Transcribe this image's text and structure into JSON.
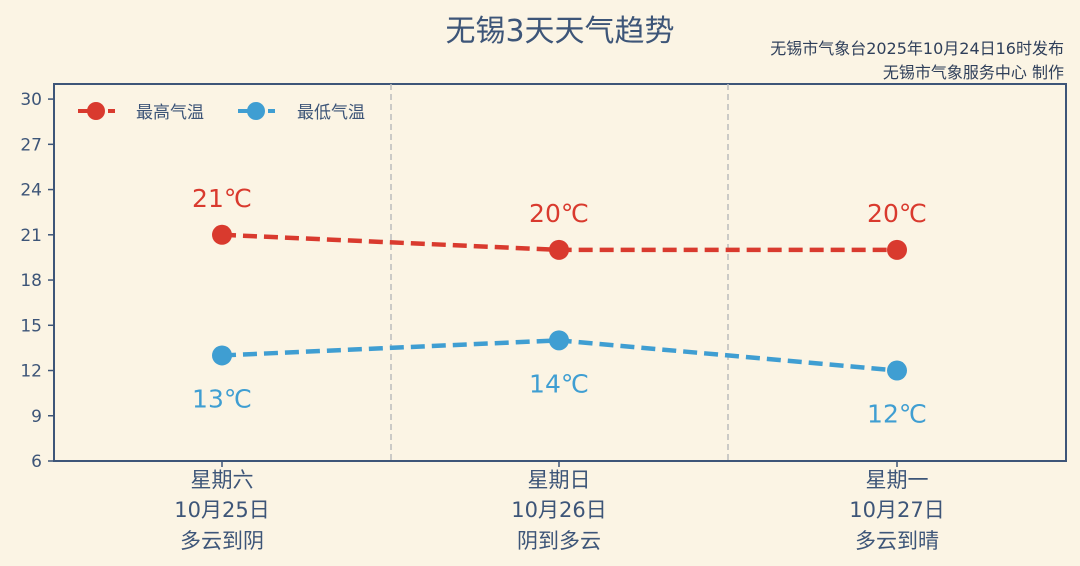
{
  "header": {
    "title": "无锡3天天气趋势",
    "publish_line": "无锡市气象台2025年10月24日16时发布",
    "producer_line": "无锡市气象服务中心 制作"
  },
  "colors": {
    "background": "#fbf4e4",
    "axis": "#3d5578",
    "high": "#d93a2e",
    "low": "#3f9ed2",
    "separator": "#bbbbbb"
  },
  "chart_data": {
    "type": "line",
    "categories": [
      {
        "weekday": "星期六",
        "date": "10月25日",
        "weather": "多云到阴"
      },
      {
        "weekday": "星期日",
        "date": "10月26日",
        "weather": "阴到多云"
      },
      {
        "weekday": "星期一",
        "date": "10月27日",
        "weather": "多云到晴"
      }
    ],
    "series": [
      {
        "name": "最高气温",
        "key": "high",
        "values": [
          21,
          20,
          20
        ],
        "labels": [
          "21℃",
          "20℃",
          "20℃"
        ],
        "label_position": "above"
      },
      {
        "name": "最低气温",
        "key": "low",
        "values": [
          13,
          14,
          12
        ],
        "labels": [
          "13℃",
          "14℃",
          "12℃"
        ],
        "label_position": "below"
      }
    ],
    "ylim": [
      6,
      31
    ],
    "yticks": [
      6,
      9,
      12,
      15,
      18,
      21,
      24,
      27,
      30
    ],
    "line_style": "dashed",
    "grid": false,
    "category_separators": "dashed vertical lines",
    "legend_position": "top-left"
  }
}
